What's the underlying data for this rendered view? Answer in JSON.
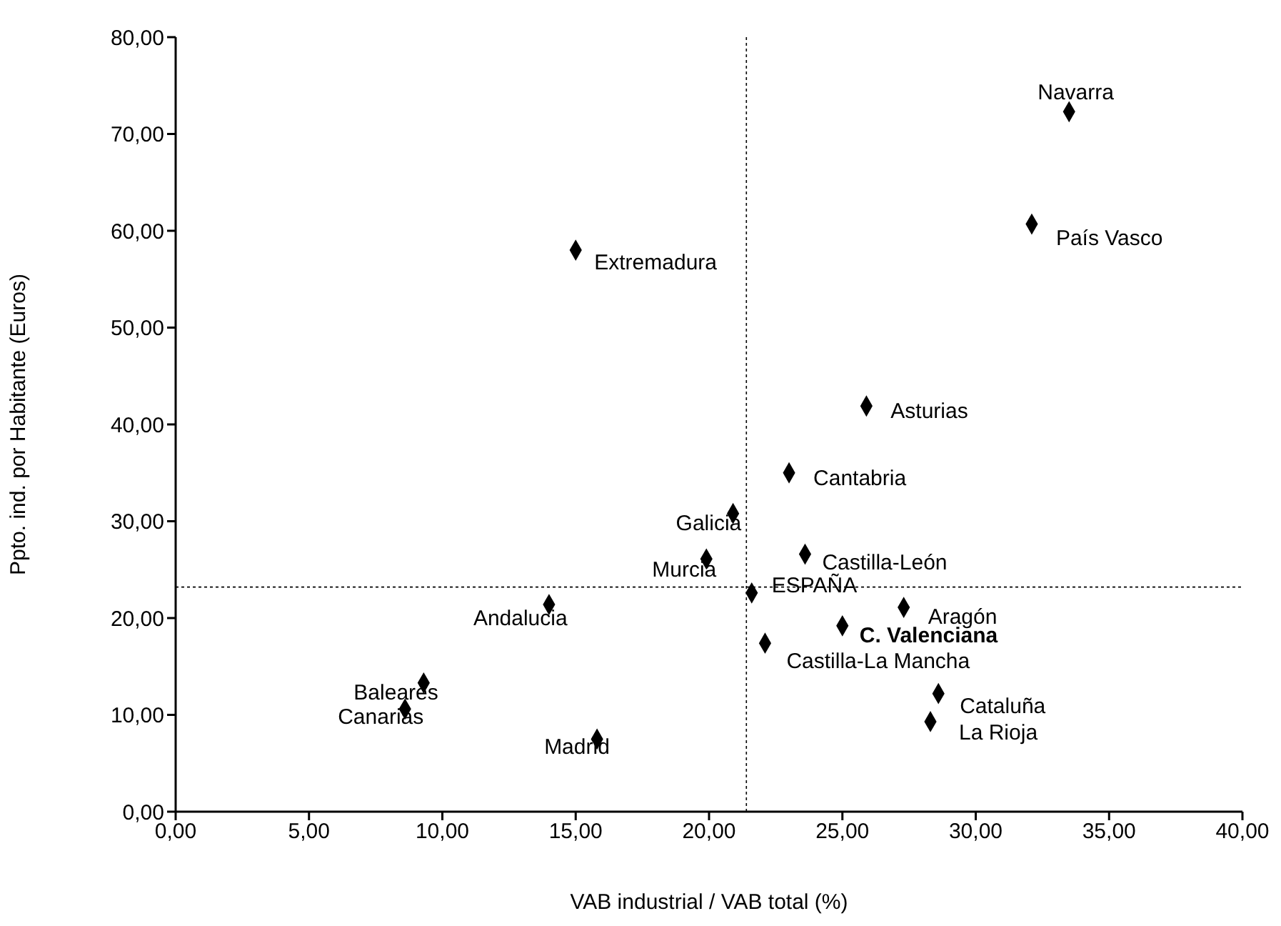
{
  "chart_data": {
    "type": "scatter",
    "xlabel": "VAB industrial / VAB total (%)",
    "ylabel": "Ppto. ind. por Habitante (Euros)",
    "xlim": [
      0,
      40
    ],
    "xticks": [
      {
        "value": 0,
        "label": "0,00"
      },
      {
        "value": 5,
        "label": "5,00"
      },
      {
        "value": 10,
        "label": "10,00"
      },
      {
        "value": 15,
        "label": "15,00"
      },
      {
        "value": 20,
        "label": "20,00"
      },
      {
        "value": 25,
        "label": "25,00"
      },
      {
        "value": 30,
        "label": "30,00"
      },
      {
        "value": 35,
        "label": "35,00"
      },
      {
        "value": 40,
        "label": "40,00"
      }
    ],
    "ylim": [
      0,
      80
    ],
    "yticks": [
      {
        "value": 0,
        "label": "0,00"
      },
      {
        "value": 10,
        "label": "10,00"
      },
      {
        "value": 20,
        "label": "20,00"
      },
      {
        "value": 30,
        "label": "30,00"
      },
      {
        "value": 40,
        "label": "40,00"
      },
      {
        "value": 50,
        "label": "50,00"
      },
      {
        "value": 60,
        "label": "60,00"
      },
      {
        "value": 70,
        "label": "70,00"
      },
      {
        "value": 80,
        "label": "80,00"
      }
    ],
    "series": [
      {
        "color": "#000000",
        "x": [
          33.5,
          32.1,
          15.0,
          25.9,
          23.0,
          20.9,
          19.9,
          23.6,
          21.6,
          14.0,
          27.3,
          25.0,
          22.1,
          28.6,
          28.3,
          9.3,
          8.6,
          15.8
        ],
        "values": [
          72.3,
          60.7,
          58.0,
          41.9,
          35.0,
          30.8,
          26.1,
          26.6,
          22.6,
          21.4,
          21.1,
          19.2,
          17.4,
          12.2,
          9.3,
          13.3,
          10.6,
          7.5
        ]
      }
    ],
    "annotations": [
      {
        "text": "Navarra",
        "x": 33.5,
        "y": 72.3
      },
      {
        "text": "País Vasco",
        "x": 32.1,
        "y": 60.7
      },
      {
        "text": "Extremadura",
        "x": 15.0,
        "y": 58.0
      },
      {
        "text": "Asturias",
        "x": 25.9,
        "y": 41.9
      },
      {
        "text": "Cantabria",
        "x": 23.0,
        "y": 35.0
      },
      {
        "text": "Galicia",
        "x": 20.9,
        "y": 30.8
      },
      {
        "text": "Murcia",
        "x": 19.9,
        "y": 26.1
      },
      {
        "text": "Castilla-León",
        "x": 23.6,
        "y": 26.6
      },
      {
        "text": "ESPAÑA",
        "x": 21.6,
        "y": 22.6
      },
      {
        "text": "Andalucia",
        "x": 14.0,
        "y": 21.4
      },
      {
        "text": "Aragón",
        "x": 27.3,
        "y": 21.1
      },
      {
        "text": "C. Valenciana",
        "x": 25.0,
        "y": 19.2
      },
      {
        "text": "Castilla-La Mancha",
        "x": 22.1,
        "y": 17.4
      },
      {
        "text": "Cataluña",
        "x": 28.6,
        "y": 12.2
      },
      {
        "text": "La Rioja",
        "x": 28.3,
        "y": 9.3
      },
      {
        "text": "Baleares",
        "x": 9.3,
        "y": 13.3
      },
      {
        "text": "Canarias",
        "x": 8.6,
        "y": 10.6
      },
      {
        "text": "Madrid",
        "x": 15.8,
        "y": 7.5
      }
    ],
    "ref_lines": [
      {
        "axis": "x",
        "value": 21.4,
        "line_style": "dotted",
        "color": "#000000"
      },
      {
        "axis": "y",
        "value": 23.2,
        "line_style": "dotted",
        "color": "#000000"
      }
    ],
    "marker": "diamond",
    "grid": false,
    "legend": false
  }
}
